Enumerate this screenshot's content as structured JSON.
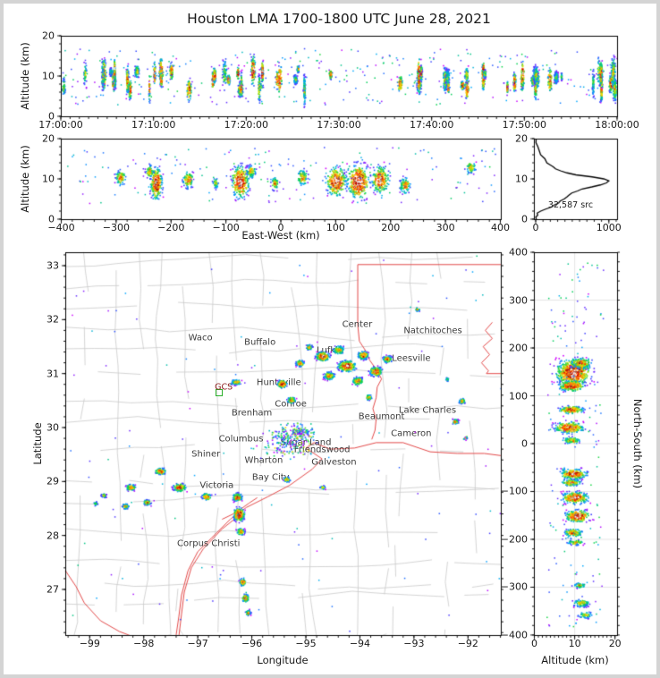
{
  "title": "Houston LMA 1700-1800 UTC June 28, 2021",
  "colors": {
    "frame": "#000000",
    "background": "#ffffff",
    "outer_border": "#d4d4d4",
    "state_coast_red": "#e24a4a",
    "county_grey": "#c9c9c9",
    "grid_grey": "#e2e2e2",
    "station_green": "#2ab02a",
    "station_text_red": "#8b1a1a",
    "histogram_line": "#000000"
  },
  "colormap_stops": [
    [
      0.0,
      "#cf00ff"
    ],
    [
      0.13,
      "#3c3cff"
    ],
    [
      0.26,
      "#00aaff"
    ],
    [
      0.38,
      "#00d24b"
    ],
    [
      0.52,
      "#e6e600"
    ],
    [
      0.64,
      "#ff9600"
    ],
    [
      0.76,
      "#ff2800"
    ],
    [
      0.87,
      "#960000"
    ],
    [
      0.94,
      "#787878"
    ],
    [
      1.0,
      "#f5f5f5"
    ]
  ],
  "chart_data": [
    {
      "id": "time_altitude",
      "type": "scatter",
      "description": "VHF lightning source altitude vs time; dense multicolored vertical strips mostly 4-16 km altitude spanning the full hour",
      "xlabel": "",
      "ylabel": "Altitude (km)",
      "xtick_labels": [
        "17:00:00",
        "17:10:00",
        "17:20:00",
        "17:30:00",
        "17:40:00",
        "17:50:00",
        "18:00:00"
      ],
      "xticks_minutes": [
        0,
        10,
        20,
        30,
        40,
        50,
        60
      ],
      "x_range_minutes": [
        0,
        60
      ],
      "ylim": [
        0,
        20
      ],
      "yticks": [
        0,
        10,
        20
      ],
      "strip_count": 66,
      "quiet_windows_min": [
        [
          32.5,
          35.3
        ],
        [
          46.3,
          47.2
        ]
      ],
      "sparse_points": 320
    },
    {
      "id": "east_west_altitude",
      "type": "scatter",
      "description": "Lightning source altitude vs east-west distance; storm clusters between -300 and +360 km",
      "xlabel": "East-West (km)",
      "ylabel": "Altitude (km)",
      "xlim": [
        -400,
        400
      ],
      "xticks": [
        -400,
        -300,
        -200,
        -100,
        0,
        100,
        200,
        300,
        400
      ],
      "ylim": [
        0,
        20
      ],
      "yticks": [
        0,
        10,
        20
      ],
      "cluster_format": "[ew_km, alt_km_center, rx_px, ry_px, n_points, intensity]",
      "clusters": [
        [
          -293,
          10.5,
          8,
          12,
          80,
          0.75
        ],
        [
          -228,
          9,
          9,
          24,
          240,
          1.0
        ],
        [
          -240,
          12,
          6,
          10,
          70,
          0.7
        ],
        [
          -170,
          10,
          8,
          13,
          110,
          0.8
        ],
        [
          -120,
          9,
          5,
          8,
          45,
          0.6
        ],
        [
          -75,
          9.5,
          13,
          24,
          300,
          1.05
        ],
        [
          -55,
          12,
          7,
          10,
          80,
          0.7
        ],
        [
          -12,
          9,
          6,
          10,
          60,
          0.7
        ],
        [
          38,
          10.5,
          8,
          12,
          90,
          0.75
        ],
        [
          100,
          9.5,
          15,
          22,
          280,
          1.0
        ],
        [
          140,
          9.5,
          17,
          25,
          360,
          1.1
        ],
        [
          180,
          10,
          13,
          20,
          230,
          0.95
        ],
        [
          225,
          8.5,
          8,
          12,
          100,
          0.8
        ],
        [
          345,
          13,
          8,
          9,
          70,
          0.7
        ]
      ],
      "sparse_points": 180
    },
    {
      "id": "altitude_histogram",
      "type": "line",
      "description": "Histogram of source counts vs altitude, peak near 9.5 km",
      "annotation": "32,587 src",
      "xlim": [
        0,
        1112
      ],
      "xticks": [
        0,
        1000
      ],
      "ylim": [
        0,
        20
      ],
      "yticks": [
        0,
        10,
        20
      ],
      "profile_alt_km_vs_count": [
        [
          0,
          8
        ],
        [
          0.5,
          10
        ],
        [
          1,
          18
        ],
        [
          1.5,
          30
        ],
        [
          2,
          60
        ],
        [
          2.5,
          130
        ],
        [
          3,
          210
        ],
        [
          3.5,
          260
        ],
        [
          4,
          300
        ],
        [
          4.5,
          345
        ],
        [
          5,
          385
        ],
        [
          5.5,
          420
        ],
        [
          6,
          455
        ],
        [
          6.5,
          500
        ],
        [
          7,
          560
        ],
        [
          7.5,
          640
        ],
        [
          8,
          760
        ],
        [
          8.5,
          880
        ],
        [
          9,
          970
        ],
        [
          9.5,
          1000
        ],
        [
          10,
          930
        ],
        [
          10.5,
          760
        ],
        [
          11,
          540
        ],
        [
          11.5,
          430
        ],
        [
          12,
          330
        ],
        [
          12.5,
          280
        ],
        [
          13,
          235
        ],
        [
          13.5,
          200
        ],
        [
          14,
          165
        ],
        [
          15,
          115
        ],
        [
          16,
          75
        ],
        [
          17,
          48
        ],
        [
          18,
          30
        ],
        [
          19,
          16
        ],
        [
          20,
          6
        ]
      ]
    },
    {
      "id": "plan_view_map",
      "type": "scatter",
      "description": "Plan view of lightning sources over southeast Texas / western Louisiana with county lines (grey) and state borders, coast and rivers (red)",
      "xlabel": "Longitude",
      "ylabel": "Latitude",
      "xlim": [
        -99.45,
        -91.39
      ],
      "ylim": [
        26.15,
        33.25
      ],
      "xticks": [
        -99,
        -98,
        -97,
        -96,
        -95,
        -94,
        -93,
        -92
      ],
      "yticks": [
        27,
        28,
        29,
        30,
        31,
        32,
        33
      ],
      "cities": [
        {
          "name": "Waco",
          "lon": -96.95,
          "lat": 31.66
        },
        {
          "name": "Buffalo",
          "lon": -95.85,
          "lat": 31.57
        },
        {
          "name": "Center",
          "lon": -94.05,
          "lat": 31.9
        },
        {
          "name": "Natchitoches",
          "lon": -92.65,
          "lat": 31.79
        },
        {
          "name": "Lufkin",
          "lon": -94.55,
          "lat": 31.42
        },
        {
          "name": "Leesville",
          "lon": -93.05,
          "lat": 31.27
        },
        {
          "name": "Huntsville",
          "lon": -95.5,
          "lat": 30.83
        },
        {
          "name": "Conroe",
          "lon": -95.28,
          "lat": 30.43
        },
        {
          "name": "Brenham",
          "lon": -96.0,
          "lat": 30.26
        },
        {
          "name": "Beaumont",
          "lon": -93.6,
          "lat": 30.2
        },
        {
          "name": "Lake Charles",
          "lon": -92.75,
          "lat": 30.32
        },
        {
          "name": "Cameron",
          "lon": -93.05,
          "lat": 29.88
        },
        {
          "name": "Columbus",
          "lon": -96.2,
          "lat": 29.78
        },
        {
          "name": "Sugar Land",
          "lon": -95.0,
          "lat": 29.71
        },
        {
          "name": "Friendswood",
          "lon": -94.7,
          "lat": 29.58
        },
        {
          "name": "Galveston",
          "lon": -94.48,
          "lat": 29.36
        },
        {
          "name": "Wharton",
          "lon": -95.78,
          "lat": 29.38
        },
        {
          "name": "Shiner",
          "lon": -96.85,
          "lat": 29.5
        },
        {
          "name": "Bay City",
          "lon": -95.65,
          "lat": 29.07
        },
        {
          "name": "Victoria",
          "lon": -96.65,
          "lat": 28.92
        },
        {
          "name": "Corpus Christi",
          "lon": -96.8,
          "lat": 27.84
        }
      ],
      "station_label": {
        "text": "GCS",
        "lon": -96.52,
        "lat": 30.74
      },
      "station_marker": {
        "lon": -96.62,
        "lat": 30.66
      },
      "cluster_format": "[lon, lat, rx_px, ry_px, n_points, intensity]",
      "clusters": [
        [
          -94.7,
          31.33,
          10,
          7,
          260,
          1.0
        ],
        [
          -94.25,
          31.15,
          13,
          8,
          340,
          1.05
        ],
        [
          -93.72,
          31.05,
          9,
          7,
          220,
          0.95
        ],
        [
          -94.58,
          30.97,
          8,
          6,
          150,
          0.85
        ],
        [
          -94.05,
          30.87,
          8,
          6,
          150,
          0.85
        ],
        [
          -93.5,
          31.28,
          7,
          5,
          120,
          0.8
        ],
        [
          -94.95,
          31.5,
          5,
          4,
          60,
          0.7
        ],
        [
          -95.12,
          31.2,
          6,
          5,
          90,
          0.8
        ],
        [
          -94.4,
          31.45,
          9,
          6,
          130,
          0.75
        ],
        [
          -93.95,
          31.35,
          8,
          6,
          150,
          0.9
        ],
        [
          -95.45,
          30.82,
          7,
          6,
          150,
          0.95
        ],
        [
          -95.28,
          30.52,
          6,
          5,
          90,
          0.8
        ],
        [
          -96.3,
          30.85,
          7,
          4,
          80,
          0.8
        ],
        [
          -93.85,
          30.57,
          5,
          4,
          60,
          0.75
        ],
        [
          -92.12,
          30.5,
          5,
          4,
          55,
          0.75
        ],
        [
          -92.25,
          30.12,
          5,
          4,
          55,
          0.75
        ],
        [
          -92.05,
          29.82,
          3,
          3,
          18,
          0.4
        ],
        [
          -92.4,
          30.9,
          3,
          3,
          20,
          0.5
        ],
        [
          -92.95,
          32.2,
          4,
          3,
          30,
          0.6
        ],
        [
          -95.35,
          29.78,
          40,
          25,
          230,
          0.3
        ],
        [
          -95.1,
          29.92,
          20,
          12,
          80,
          0.3
        ],
        [
          -95.36,
          29.05,
          5,
          4,
          50,
          0.7
        ],
        [
          -94.7,
          28.9,
          4,
          3,
          30,
          0.6
        ],
        [
          -97.7,
          29.2,
          8,
          5,
          110,
          0.85
        ],
        [
          -98.25,
          28.9,
          7,
          5,
          90,
          0.8
        ],
        [
          -97.35,
          28.9,
          9,
          6,
          160,
          0.95
        ],
        [
          -96.85,
          28.73,
          7,
          5,
          110,
          0.85
        ],
        [
          -97.95,
          28.62,
          6,
          4,
          70,
          0.75
        ],
        [
          -98.35,
          28.55,
          5,
          4,
          60,
          0.7
        ],
        [
          -98.75,
          28.75,
          4,
          3,
          35,
          0.6
        ],
        [
          -98.9,
          28.6,
          3,
          3,
          25,
          0.55
        ],
        [
          -96.28,
          28.72,
          7,
          6,
          140,
          0.9
        ],
        [
          -96.25,
          28.4,
          8,
          10,
          260,
          1.05
        ],
        [
          -96.22,
          28.08,
          6,
          5,
          90,
          0.8
        ],
        [
          -96.18,
          27.15,
          5,
          6,
          80,
          0.8
        ],
        [
          -96.13,
          26.85,
          5,
          6,
          90,
          0.85
        ],
        [
          -96.08,
          26.58,
          4,
          4,
          45,
          0.7
        ]
      ],
      "sparse_points": 130,
      "state_coast_lines": [
        [
          [
            -94.04,
            33.02
          ],
          [
            -91.39,
            33.02
          ]
        ],
        [
          [
            -94.04,
            33.02
          ],
          [
            -94.04,
            31.9
          ],
          [
            -94.01,
            31.6
          ],
          [
            -93.88,
            31.4
          ],
          [
            -93.82,
            31.25
          ],
          [
            -93.68,
            31.05
          ],
          [
            -93.6,
            30.9
          ],
          [
            -93.68,
            30.75
          ],
          [
            -93.7,
            30.55
          ],
          [
            -93.76,
            30.35
          ],
          [
            -93.7,
            30.15
          ],
          [
            -93.72,
            29.95
          ],
          [
            -93.78,
            29.78
          ]
        ],
        [
          [
            -91.55,
            31.95
          ],
          [
            -91.68,
            31.8
          ],
          [
            -91.55,
            31.65
          ],
          [
            -91.72,
            31.5
          ],
          [
            -91.6,
            31.35
          ],
          [
            -91.75,
            31.2
          ],
          [
            -91.62,
            31.05
          ],
          [
            -91.66,
            31.0
          ]
        ],
        [
          [
            -91.66,
            31.0
          ],
          [
            -91.39,
            31.0
          ]
        ],
        [
          [
            -97.42,
            26.02
          ],
          [
            -97.35,
            26.5
          ],
          [
            -97.3,
            26.9
          ],
          [
            -97.18,
            27.35
          ],
          [
            -97.0,
            27.7
          ],
          [
            -96.75,
            27.95
          ],
          [
            -96.4,
            28.3
          ],
          [
            -96.1,
            28.52
          ],
          [
            -95.7,
            28.72
          ],
          [
            -95.3,
            28.93
          ],
          [
            -94.88,
            29.23
          ],
          [
            -94.7,
            29.42
          ],
          [
            -95.0,
            29.62
          ],
          [
            -94.85,
            29.72
          ],
          [
            -94.55,
            29.6
          ],
          [
            -94.1,
            29.62
          ],
          [
            -93.7,
            29.72
          ],
          [
            -93.2,
            29.72
          ],
          [
            -92.7,
            29.55
          ],
          [
            -92.2,
            29.52
          ],
          [
            -91.7,
            29.52
          ],
          [
            -91.39,
            29.48
          ]
        ],
        [
          [
            -97.36,
            26.05
          ],
          [
            -97.3,
            26.55
          ],
          [
            -97.25,
            26.95
          ],
          [
            -97.12,
            27.4
          ],
          [
            -96.9,
            27.75
          ],
          [
            -96.55,
            28.12
          ],
          [
            -96.2,
            28.4
          ]
        ],
        [
          [
            -99.45,
            27.35
          ],
          [
            -99.25,
            27.05
          ],
          [
            -99.1,
            26.75
          ],
          [
            -98.8,
            26.42
          ],
          [
            -98.45,
            26.22
          ],
          [
            -98.0,
            26.05
          ],
          [
            -97.6,
            25.98
          ],
          [
            -97.42,
            26.02
          ]
        ],
        [
          [
            -96.55,
            28.3
          ],
          [
            -96.3,
            28.42
          ],
          [
            -96.05,
            28.6
          ],
          [
            -95.9,
            28.7
          ]
        ]
      ]
    },
    {
      "id": "north_south_altitude",
      "type": "scatter",
      "description": "Lightning source altitude vs north-south distance; mirrors the latitude bands of the plan view",
      "xlabel": "Altitude (km)",
      "ylabel": "North-South (km)",
      "xlim": [
        0,
        20
      ],
      "xticks": [
        0,
        10,
        20
      ],
      "ylim": [
        -400,
        400
      ],
      "yticks": [
        -400,
        -300,
        -200,
        -100,
        0,
        100,
        200,
        300,
        400
      ],
      "cluster_format": "[alt_km_center, ns_km, rx_px, ry_px, n_points, intensity]",
      "clusters": [
        [
          9.5,
          150,
          26,
          20,
          650,
          1.05
        ],
        [
          9,
          122,
          20,
          8,
          220,
          0.95
        ],
        [
          11.5,
          170,
          16,
          8,
          160,
          0.85
        ],
        [
          9,
          72,
          18,
          6,
          160,
          0.9
        ],
        [
          8.5,
          35,
          22,
          9,
          260,
          0.95
        ],
        [
          9,
          8,
          14,
          5,
          90,
          0.75
        ],
        [
          9.5,
          -62,
          20,
          8,
          230,
          0.95
        ],
        [
          9,
          -80,
          16,
          5,
          110,
          0.8
        ],
        [
          10,
          -112,
          20,
          9,
          280,
          1.0
        ],
        [
          10.5,
          -150,
          18,
          9,
          260,
          1.05
        ],
        [
          9.5,
          -185,
          14,
          6,
          120,
          0.8
        ],
        [
          10,
          -205,
          12,
          4,
          70,
          0.7
        ],
        [
          11,
          -295,
          10,
          4,
          50,
          0.6
        ],
        [
          11.5,
          -332,
          13,
          6,
          90,
          0.65
        ],
        [
          12.5,
          -357,
          11,
          5,
          60,
          0.6
        ]
      ],
      "sparse_points": 170
    }
  ]
}
